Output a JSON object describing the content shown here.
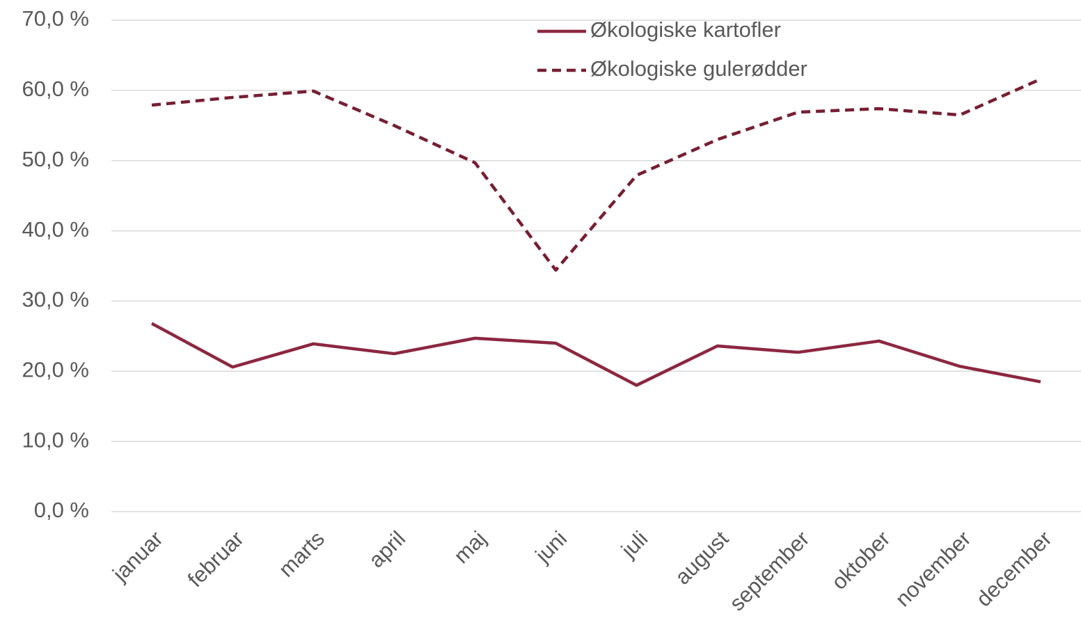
{
  "chart_data": {
    "type": "line",
    "categories": [
      "januar",
      "februar",
      "marts",
      "april",
      "maj",
      "juni",
      "juli",
      "august",
      "september",
      "oktober",
      "november",
      "december"
    ],
    "series": [
      {
        "name": "Økologiske kartofler",
        "color": "#8c2740",
        "style": "solid",
        "values": [
          26.8,
          20.6,
          23.9,
          22.5,
          24.7,
          24.0,
          18.0,
          23.6,
          22.7,
          24.3,
          20.7,
          18.5
        ]
      },
      {
        "name": "Økologiske gulerødder",
        "color": "#761f33",
        "style": "dashed",
        "values": [
          57.9,
          59.0,
          59.9,
          55.0,
          49.7,
          34.4,
          47.9,
          53.0,
          56.9,
          57.4,
          56.5,
          61.6
        ]
      }
    ],
    "ylim": [
      0,
      70
    ],
    "yticks": [
      {
        "value": 0,
        "label": "0,0 %"
      },
      {
        "value": 10,
        "label": "10,0 %"
      },
      {
        "value": 20,
        "label": "20,0 %"
      },
      {
        "value": 30,
        "label": "30,0 %"
      },
      {
        "value": 40,
        "label": "40,0 %"
      },
      {
        "value": 50,
        "label": "50,0 %"
      },
      {
        "value": 60,
        "label": "60,0 %"
      },
      {
        "value": 70,
        "label": "70,0 %"
      }
    ],
    "grid": true,
    "legend": "top"
  }
}
